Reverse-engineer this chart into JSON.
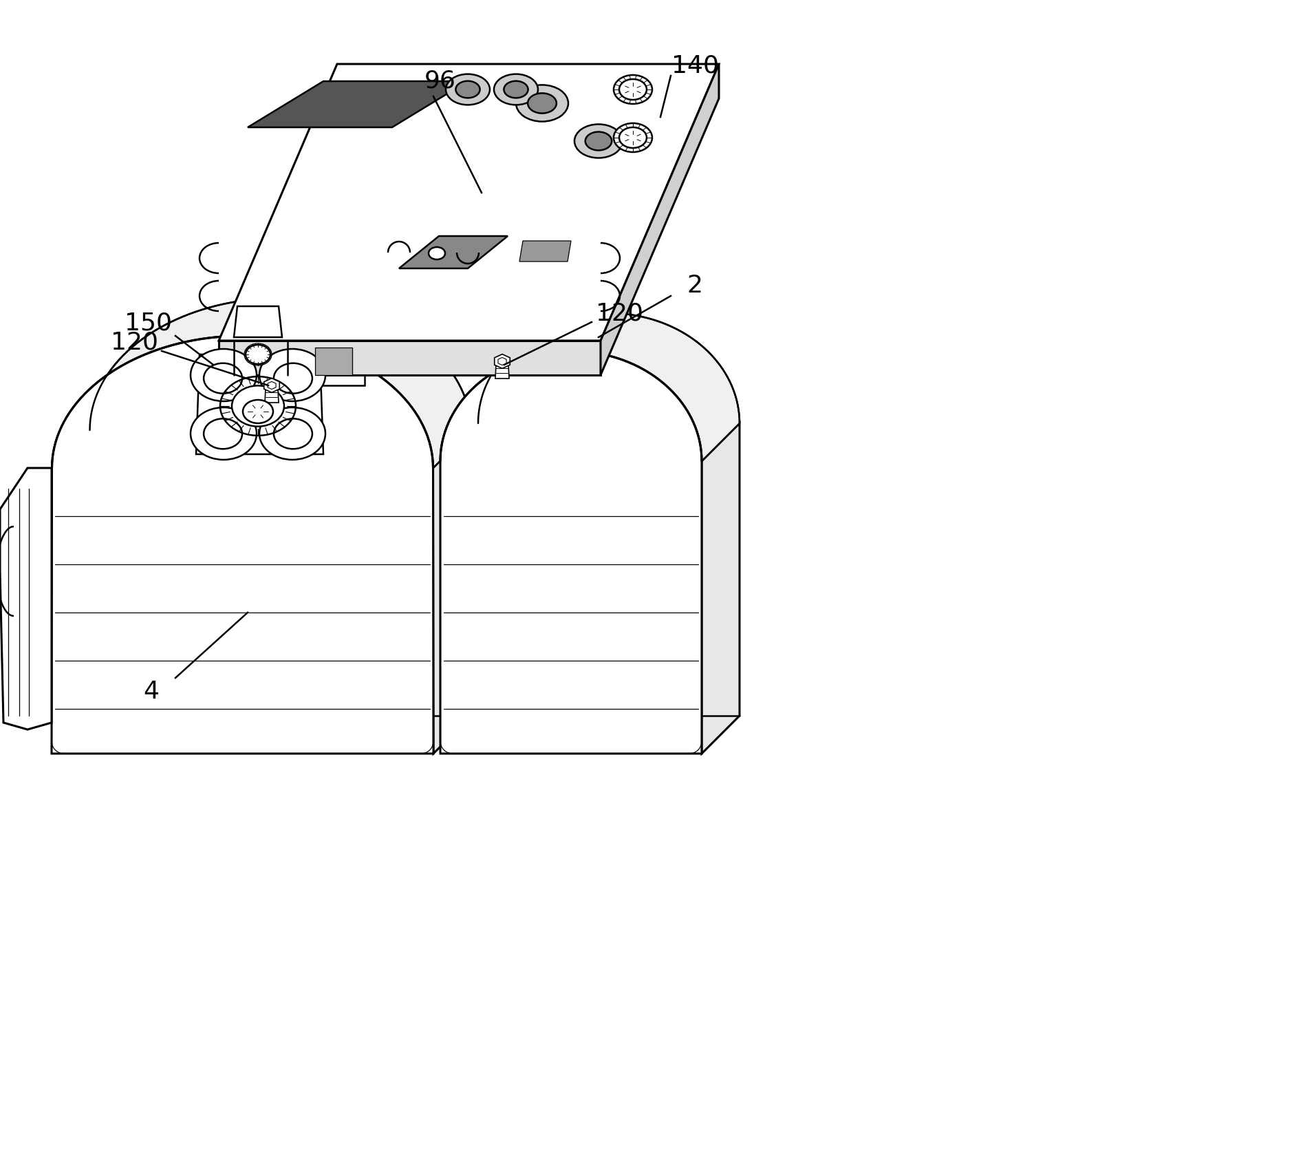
{
  "background_color": "#ffffff",
  "line_color": "#000000",
  "lw": 1.8,
  "lw_thin": 0.9,
  "lw_thick": 2.2,
  "figsize": [
    19.1,
    16.71
  ],
  "dpi": 100,
  "label_fontsize": 26,
  "label_color": "#000000"
}
